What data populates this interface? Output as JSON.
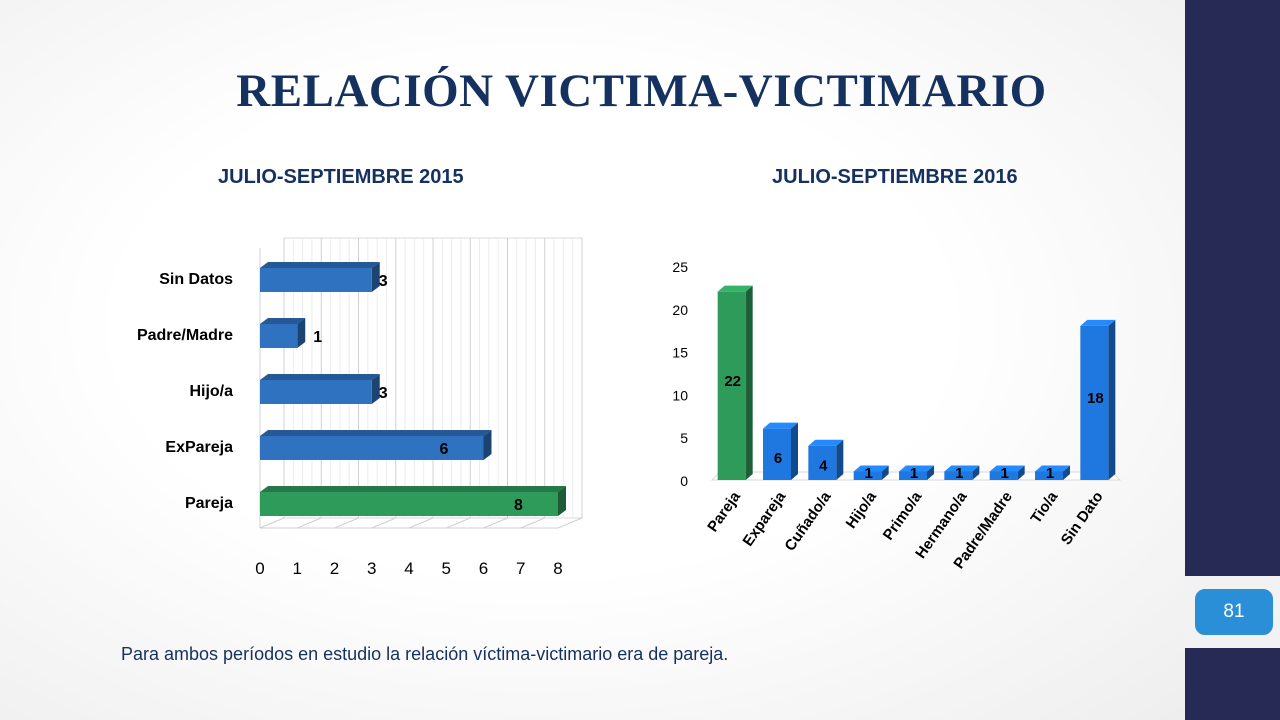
{
  "title": "RELACIÓN VICTIMA-VICTIMARIO",
  "page_number": "81",
  "caption": "Para ambos períodos en estudio la relación víctima-victimario era de pareja.",
  "colors": {
    "blue": "#2f72c0",
    "green": "#2f9b5a",
    "title": "#14315f",
    "sidebar": "#262a55",
    "accent": "#2b8fd8"
  },
  "chart_data": [
    {
      "type": "bar",
      "orientation": "horizontal",
      "title": "JULIO-SEPTIEMBRE 2015",
      "categories": [
        "Pareja",
        "ExPareja",
        "Hijo/a",
        "Padre/Madre",
        "Sin Datos"
      ],
      "values": [
        8,
        6,
        3,
        1,
        3
      ],
      "bar_colors": [
        "#2f9b5a",
        "#2f72c0",
        "#2f72c0",
        "#2f72c0",
        "#2f72c0"
      ],
      "xlim": [
        0,
        8
      ],
      "xticks": [
        0,
        1,
        2,
        3,
        4,
        5,
        6,
        7,
        8
      ],
      "grid": true,
      "legend": "none"
    },
    {
      "type": "bar",
      "orientation": "vertical",
      "title": "JULIO-SEPTIEMBRE 2016",
      "categories": [
        "Pareja",
        "Expareja",
        "Cuñado/a",
        "Hijo/a",
        "Primo/a",
        "Hermano/a",
        "Padre/Madre",
        "Tio/a",
        "Sin Dato"
      ],
      "values": [
        22,
        6,
        4,
        1,
        1,
        1,
        1,
        1,
        18
      ],
      "bar_colors": [
        "#2f9b5a",
        "#1f78e0",
        "#1f78e0",
        "#1f78e0",
        "#1f78e0",
        "#1f78e0",
        "#1f78e0",
        "#1f78e0",
        "#1f78e0"
      ],
      "ylim": [
        0,
        25
      ],
      "yticks": [
        0,
        5,
        10,
        15,
        20,
        25
      ],
      "grid": false,
      "legend": "none"
    }
  ]
}
